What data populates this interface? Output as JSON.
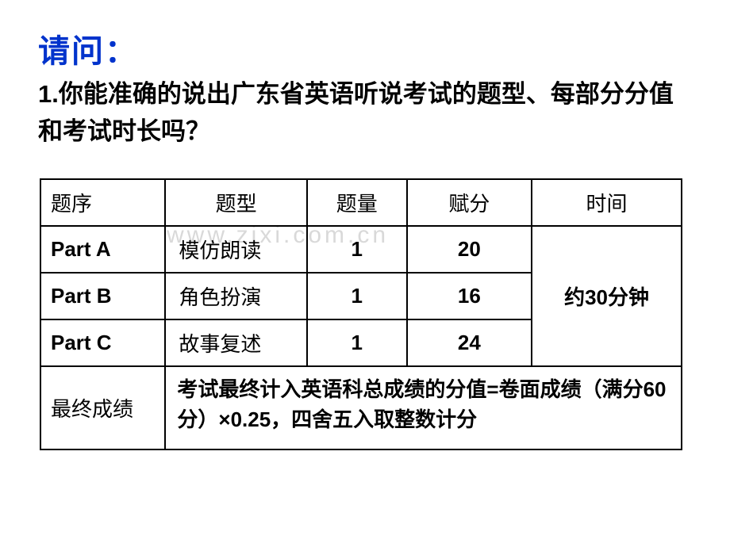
{
  "heading": "请问：",
  "question": "1.你能准确的说出广东省英语听说考试的题型、每部分分值和考试时长吗？",
  "watermark": "www.zjxi.com.cn",
  "table": {
    "headers": {
      "seq": "题序",
      "type": "题型",
      "count": "题量",
      "score": "赋分",
      "time": "时间"
    },
    "rows": [
      {
        "seq": "Part A",
        "type": "模仿朗读",
        "count": "1",
        "score": "20"
      },
      {
        "seq": "Part B",
        "type": "角色扮演",
        "count": "1",
        "score": "16"
      },
      {
        "seq": "Part C",
        "type": "故事复述",
        "count": "1",
        "score": "24"
      }
    ],
    "time_merged": "约30分钟",
    "final_label": "最终成绩",
    "final_note": "考试最终计入英语科总成绩的分值=卷面成绩（满分60分）×0.25，四舍五入取整数计分"
  },
  "colors": {
    "heading": "#0033cc",
    "text": "#000000",
    "border": "#000000",
    "background": "#ffffff",
    "watermark": "#d9d9d9"
  }
}
